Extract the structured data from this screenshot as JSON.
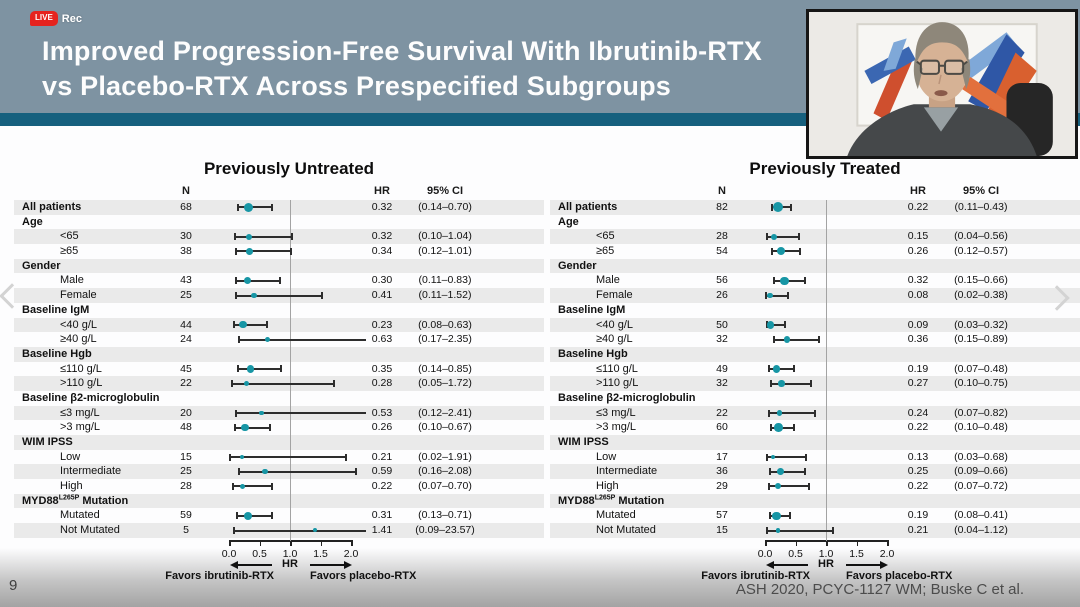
{
  "recording": {
    "live": "LIVE",
    "rec": "Rec"
  },
  "slide": {
    "title_line1": "Improved Progression-Free Survival With Ibrutinib-RTX",
    "title_line2": "vs Placebo-RTX Across Prespecified Subgroups",
    "page_number": "9",
    "citation": "ASH 2020, PCYC-1127 WM; Buske C et al."
  },
  "colors": {
    "header_band": "#7e93a2",
    "teal_bar": "#16607e",
    "rec_red": "#e5231e",
    "marker_teal": "#1796a5",
    "error_bar": "#2d2d2d",
    "reference_line": "#a3a3a3",
    "row_stripe": "#eaeaea"
  },
  "chart_data": [
    {
      "type": "scatter",
      "variant": "forest-plot",
      "title": "Previously Untreated",
      "columns": {
        "n": "N",
        "hr": "HR",
        "ci": "95% CI"
      },
      "axis": {
        "xlim": [
          0.0,
          2.0
        ],
        "ticks": [
          "0.0",
          "0.5",
          "1.0",
          "1.5",
          "2.0"
        ],
        "label": "HR",
        "refline": 1.0,
        "favors_left": "Favors ibrutinib-RTX",
        "favors_right": "Favors placebo-RTX"
      },
      "rows": [
        {
          "label": "All patients",
          "bold": true,
          "n": "68",
          "hr": 0.32,
          "lo": 0.14,
          "hi": 0.7,
          "hr_text": "0.32",
          "ci_text": "(0.14–0.70)"
        },
        {
          "label": "Age",
          "group": true
        },
        {
          "label": "<65",
          "n": "30",
          "hr": 0.32,
          "lo": 0.1,
          "hi": 1.04,
          "hr_text": "0.32",
          "ci_text": "(0.10–1.04)"
        },
        {
          "label": "≥65",
          "n": "38",
          "hr": 0.34,
          "lo": 0.12,
          "hi": 1.01,
          "hr_text": "0.34",
          "ci_text": "(0.12–1.01)"
        },
        {
          "label": "Gender",
          "group": true
        },
        {
          "label": "Male",
          "n": "43",
          "hr": 0.3,
          "lo": 0.11,
          "hi": 0.83,
          "hr_text": "0.30",
          "ci_text": "(0.11–0.83)"
        },
        {
          "label": "Female",
          "n": "25",
          "hr": 0.41,
          "lo": 0.11,
          "hi": 1.52,
          "hr_text": "0.41",
          "ci_text": "(0.11–1.52)"
        },
        {
          "label": "Baseline IgM",
          "group": true
        },
        {
          "label": "<40 g/L",
          "n": "44",
          "hr": 0.23,
          "lo": 0.08,
          "hi": 0.63,
          "hr_text": "0.23",
          "ci_text": "(0.08–0.63)"
        },
        {
          "label": "≥40 g/L",
          "n": "24",
          "hr": 0.63,
          "lo": 0.17,
          "hi": 2.35,
          "hr_text": "0.63",
          "ci_text": "(0.17–2.35)"
        },
        {
          "label": "Baseline Hgb",
          "group": true
        },
        {
          "label": "≤110 g/L",
          "n": "45",
          "hr": 0.35,
          "lo": 0.14,
          "hi": 0.85,
          "hr_text": "0.35",
          "ci_text": "(0.14–0.85)"
        },
        {
          "label": ">110 g/L",
          "n": "22",
          "hr": 0.28,
          "lo": 0.05,
          "hi": 1.72,
          "hr_text": "0.28",
          "ci_text": "(0.05–1.72)"
        },
        {
          "label": "Baseline β2-microglobulin",
          "group": true
        },
        {
          "label": "≤3 mg/L",
          "n": "20",
          "hr": 0.53,
          "lo": 0.12,
          "hi": 2.41,
          "hr_text": "0.53",
          "ci_text": "(0.12–2.41)"
        },
        {
          "label": ">3 mg/L",
          "n": "48",
          "hr": 0.26,
          "lo": 0.1,
          "hi": 0.67,
          "hr_text": "0.26",
          "ci_text": "(0.10–0.67)"
        },
        {
          "label": "WIM IPSS",
          "group": true
        },
        {
          "label": "Low",
          "n": "15",
          "hr": 0.21,
          "lo": 0.02,
          "hi": 1.91,
          "hr_text": "0.21",
          "ci_text": "(0.02–1.91)"
        },
        {
          "label": "Intermediate",
          "n": "25",
          "hr": 0.59,
          "lo": 0.16,
          "hi": 2.08,
          "hr_text": "0.59",
          "ci_text": "(0.16–2.08)"
        },
        {
          "label": "High",
          "n": "28",
          "hr": 0.22,
          "lo": 0.07,
          "hi": 0.7,
          "hr_text": "0.22",
          "ci_text": "(0.07–0.70)"
        },
        {
          "label": "MYD88",
          "sup": "L265P",
          "label_after": " Mutation",
          "group": true
        },
        {
          "label": "Mutated",
          "n": "59",
          "hr": 0.31,
          "lo": 0.13,
          "hi": 0.71,
          "hr_text": "0.31",
          "ci_text": "(0.13–0.71)"
        },
        {
          "label": "Not Mutated",
          "n": "5",
          "hr": 1.41,
          "lo": 0.09,
          "hi": 23.57,
          "hr_text": "1.41",
          "ci_text": "(0.09–23.57)"
        }
      ]
    },
    {
      "type": "scatter",
      "variant": "forest-plot",
      "title": "Previously Treated",
      "columns": {
        "n": "N",
        "hr": "HR",
        "ci": "95% CI"
      },
      "axis": {
        "xlim": [
          0.0,
          2.0
        ],
        "ticks": [
          "0.0",
          "0.5",
          "1.0",
          "1.5",
          "2.0"
        ],
        "label": "HR",
        "refline": 1.0,
        "favors_left": "Favors ibrutinib-RTX",
        "favors_right": "Favors placebo-RTX"
      },
      "rows": [
        {
          "label": "All patients",
          "bold": true,
          "n": "82",
          "hr": 0.22,
          "lo": 0.11,
          "hi": 0.43,
          "hr_text": "0.22",
          "ci_text": "(0.11–0.43)"
        },
        {
          "label": "Age",
          "group": true
        },
        {
          "label": "<65",
          "n": "28",
          "hr": 0.15,
          "lo": 0.04,
          "hi": 0.56,
          "hr_text": "0.15",
          "ci_text": "(0.04–0.56)"
        },
        {
          "label": "≥65",
          "n": "54",
          "hr": 0.26,
          "lo": 0.12,
          "hi": 0.57,
          "hr_text": "0.26",
          "ci_text": "(0.12–0.57)"
        },
        {
          "label": "Gender",
          "group": true
        },
        {
          "label": "Male",
          "n": "56",
          "hr": 0.32,
          "lo": 0.15,
          "hi": 0.66,
          "hr_text": "0.32",
          "ci_text": "(0.15–0.66)"
        },
        {
          "label": "Female",
          "n": "26",
          "hr": 0.08,
          "lo": 0.02,
          "hi": 0.38,
          "hr_text": "0.08",
          "ci_text": "(0.02–0.38)"
        },
        {
          "label": "Baseline IgM",
          "group": true
        },
        {
          "label": "<40 g/L",
          "n": "50",
          "hr": 0.09,
          "lo": 0.03,
          "hi": 0.32,
          "hr_text": "0.09",
          "ci_text": "(0.03–0.32)"
        },
        {
          "label": "≥40 g/L",
          "n": "32",
          "hr": 0.36,
          "lo": 0.15,
          "hi": 0.89,
          "hr_text": "0.36",
          "ci_text": "(0.15–0.89)"
        },
        {
          "label": "Baseline Hgb",
          "group": true
        },
        {
          "label": "≤110 g/L",
          "n": "49",
          "hr": 0.19,
          "lo": 0.07,
          "hi": 0.48,
          "hr_text": "0.19",
          "ci_text": "(0.07–0.48)"
        },
        {
          "label": ">110 g/L",
          "n": "32",
          "hr": 0.27,
          "lo": 0.1,
          "hi": 0.75,
          "hr_text": "0.27",
          "ci_text": "(0.10–0.75)"
        },
        {
          "label": "Baseline β2-microglobulin",
          "group": true
        },
        {
          "label": "≤3 mg/L",
          "n": "22",
          "hr": 0.24,
          "lo": 0.07,
          "hi": 0.82,
          "hr_text": "0.24",
          "ci_text": "(0.07–0.82)"
        },
        {
          "label": ">3 mg/L",
          "n": "60",
          "hr": 0.22,
          "lo": 0.1,
          "hi": 0.48,
          "hr_text": "0.22",
          "ci_text": "(0.10–0.48)"
        },
        {
          "label": "WIM IPSS",
          "group": true
        },
        {
          "label": "Low",
          "n": "17",
          "hr": 0.13,
          "lo": 0.03,
          "hi": 0.68,
          "hr_text": "0.13",
          "ci_text": "(0.03–0.68)"
        },
        {
          "label": "Intermediate",
          "n": "36",
          "hr": 0.25,
          "lo": 0.09,
          "hi": 0.66,
          "hr_text": "0.25",
          "ci_text": "(0.09–0.66)"
        },
        {
          "label": "High",
          "n": "29",
          "hr": 0.22,
          "lo": 0.07,
          "hi": 0.72,
          "hr_text": "0.22",
          "ci_text": "(0.07–0.72)"
        },
        {
          "label": "MYD88",
          "sup": "L265P",
          "label_after": " Mutation",
          "group": true
        },
        {
          "label": "Mutated",
          "n": "57",
          "hr": 0.19,
          "lo": 0.08,
          "hi": 0.41,
          "hr_text": "0.19",
          "ci_text": "(0.08–0.41)"
        },
        {
          "label": "Not Mutated",
          "n": "15",
          "hr": 0.21,
          "lo": 0.04,
          "hi": 1.12,
          "hr_text": "0.21",
          "ci_text": "(0.04–1.12)"
        }
      ]
    }
  ]
}
